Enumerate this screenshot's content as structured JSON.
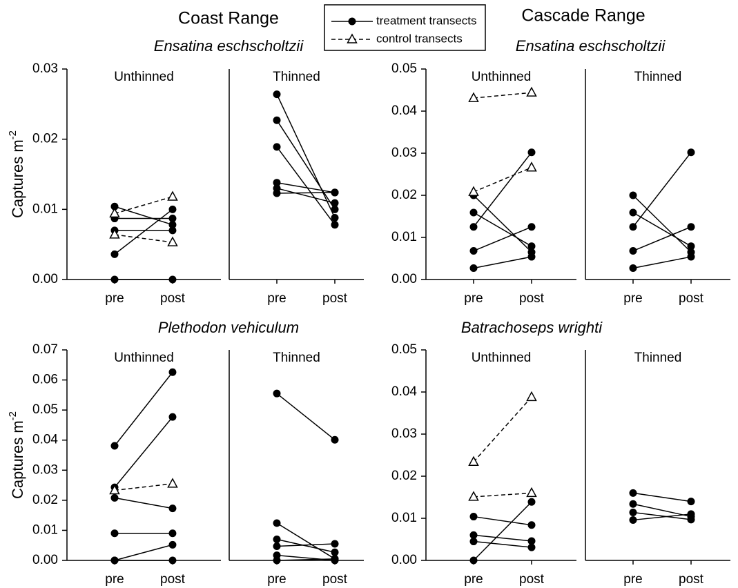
{
  "headers": [
    "Coast Range",
    "Cascade Range"
  ],
  "species": [
    "Ensatina eschscholtzii",
    "Ensatina eschscholtzii",
    "Plethodon vehiculum",
    "Batrachoseps wrighti"
  ],
  "chart_data": [
    {
      "type": "line",
      "title": "Unthinned",
      "categories": [
        "pre",
        "post"
      ],
      "ylabel": {
        "text": "Captures m",
        "sup": "-2"
      },
      "ylim": [
        0,
        0.03
      ],
      "yticks": [
        {
          "value": 0,
          "label": "0.00"
        },
        {
          "value": 0.01,
          "label": "0.01"
        },
        {
          "value": 0.02,
          "label": "0.02"
        },
        {
          "value": 0.03,
          "label": "0.03"
        }
      ],
      "series": [
        {
          "name": "treatment transects",
          "color": "#000000",
          "dashed": false,
          "marker": "circle",
          "values": [
            [
              0.0104,
              0.0078
            ],
            [
              0.0087,
              0.0087
            ],
            [
              0.007,
              0.007
            ],
            [
              0.0036,
              0.01
            ],
            [
              0,
              0
            ]
          ]
        },
        {
          "name": "control transects",
          "color": "#000000",
          "dashed": true,
          "marker": "triangle",
          "values": [
            [
              0.0094,
              0.0118
            ],
            [
              0.0064,
              0.0053
            ]
          ]
        }
      ]
    },
    {
      "type": "line",
      "title": "Thinned",
      "categories": [
        "pre",
        "post"
      ],
      "ylim": [
        0,
        0.03
      ],
      "series": [
        {
          "name": "treatment transects",
          "color": "#000000",
          "dashed": false,
          "marker": "circle",
          "values": [
            [
              0.0264,
              0.0088
            ],
            [
              0.0227,
              0.01
            ],
            [
              0.0189,
              0.0078
            ],
            [
              0.0138,
              0.0124
            ],
            [
              0.013,
              0.0109
            ],
            [
              0.0123,
              0.0124
            ]
          ]
        }
      ]
    },
    {
      "type": "line",
      "title": "Unthinned",
      "categories": [
        "pre",
        "post"
      ],
      "ylim": [
        0,
        0.05
      ],
      "yticks": [
        {
          "value": 0,
          "label": "0.00"
        },
        {
          "value": 0.01,
          "label": "0.01"
        },
        {
          "value": 0.02,
          "label": "0.02"
        },
        {
          "value": 0.03,
          "label": "0.03"
        },
        {
          "value": 0.04,
          "label": "0.04"
        },
        {
          "value": 0.05,
          "label": "0.05"
        }
      ],
      "series": [
        {
          "name": "treatment transects",
          "color": "#000000",
          "dashed": false,
          "marker": "circle",
          "values": [
            [
              0.02,
              0.0065
            ],
            [
              0.0159,
              0.0079
            ],
            [
              0.0125,
              0.0302
            ],
            [
              0.0068,
              0.0125
            ],
            [
              0.0027,
              0.0054
            ]
          ]
        },
        {
          "name": "control transects",
          "color": "#000000",
          "dashed": true,
          "marker": "triangle",
          "values": [
            [
              0.0431,
              0.0444
            ],
            [
              0.0208,
              0.0266
            ]
          ]
        }
      ]
    },
    {
      "type": "line",
      "title": "Thinned",
      "categories": [
        "pre",
        "post"
      ],
      "ylim": [
        0,
        0.05
      ],
      "series": [
        {
          "name": "treatment transects",
          "color": "#000000",
          "dashed": false,
          "marker": "circle",
          "values": [
            [
              0.02,
              0.0065
            ],
            [
              0.0159,
              0.0079
            ],
            [
              0.0125,
              0.0302
            ],
            [
              0.0068,
              0.0125
            ],
            [
              0.0027,
              0.0054
            ]
          ]
        }
      ]
    },
    {
      "type": "line",
      "title": "Unthinned",
      "categories": [
        "pre",
        "post"
      ],
      "ylabel": {
        "text": "Captures m",
        "sup": "-2"
      },
      "ylim": [
        0,
        0.07
      ],
      "yticks": [
        {
          "value": 0,
          "label": "0.00"
        },
        {
          "value": 0.01,
          "label": "0.01"
        },
        {
          "value": 0.02,
          "label": "0.02"
        },
        {
          "value": 0.03,
          "label": "0.03"
        },
        {
          "value": 0.04,
          "label": "0.04"
        },
        {
          "value": 0.05,
          "label": "0.05"
        },
        {
          "value": 0.06,
          "label": "0.06"
        },
        {
          "value": 0.07,
          "label": "0.07"
        }
      ],
      "series": [
        {
          "name": "treatment transects",
          "color": "#000000",
          "dashed": false,
          "marker": "circle",
          "values": [
            [
              0.0381,
              0.0626
            ],
            [
              0.0243,
              0.0477
            ],
            [
              0.0208,
              0.0173
            ],
            [
              0.009,
              0.009
            ],
            [
              0,
              0.0052
            ],
            [
              0,
              0
            ]
          ]
        },
        {
          "name": "control transects",
          "color": "#000000",
          "dashed": true,
          "marker": "triangle",
          "values": [
            [
              0.0233,
              0.0255
            ]
          ]
        }
      ]
    },
    {
      "type": "line",
      "title": "Thinned",
      "categories": [
        "pre",
        "post"
      ],
      "ylim": [
        0,
        0.07
      ],
      "series": [
        {
          "name": "treatment transects",
          "color": "#000000",
          "dashed": false,
          "marker": "circle",
          "values": [
            [
              0.0555,
              0.0401
            ],
            [
              0.0124,
              0.0005
            ],
            [
              0.007,
              0.0027
            ],
            [
              0.0047,
              0.0055
            ],
            [
              0.0017,
              0
            ],
            [
              0,
              0.0005
            ]
          ]
        }
      ]
    },
    {
      "type": "line",
      "title": "Unthinned",
      "categories": [
        "pre",
        "post"
      ],
      "ylim": [
        0,
        0.05
      ],
      "yticks": [
        {
          "value": 0,
          "label": "0.00"
        },
        {
          "value": 0.01,
          "label": "0.01"
        },
        {
          "value": 0.02,
          "label": "0.02"
        },
        {
          "value": 0.03,
          "label": "0.03"
        },
        {
          "value": 0.04,
          "label": "0.04"
        },
        {
          "value": 0.05,
          "label": "0.05"
        }
      ],
      "series": [
        {
          "name": "treatment transects",
          "color": "#000000",
          "dashed": false,
          "marker": "circle",
          "values": [
            [
              0.0104,
              0.0084
            ],
            [
              0.006,
              0.0046
            ],
            [
              0.0045,
              0.0031
            ],
            [
              0,
              0.0139
            ]
          ]
        },
        {
          "name": "control transects",
          "color": "#000000",
          "dashed": true,
          "marker": "triangle",
          "values": [
            [
              0.0234,
              0.0388
            ],
            [
              0.0151,
              0.016
            ]
          ]
        }
      ]
    },
    {
      "type": "line",
      "title": "Thinned",
      "categories": [
        "pre",
        "post"
      ],
      "ylim": [
        0,
        0.05
      ],
      "series": [
        {
          "name": "treatment transects",
          "color": "#000000",
          "dashed": false,
          "marker": "circle",
          "values": [
            [
              0.016,
              0.014
            ],
            [
              0.0134,
              0.0104
            ],
            [
              0.0114,
              0.0097
            ],
            [
              0.0096,
              0.011
            ]
          ]
        }
      ]
    }
  ]
}
